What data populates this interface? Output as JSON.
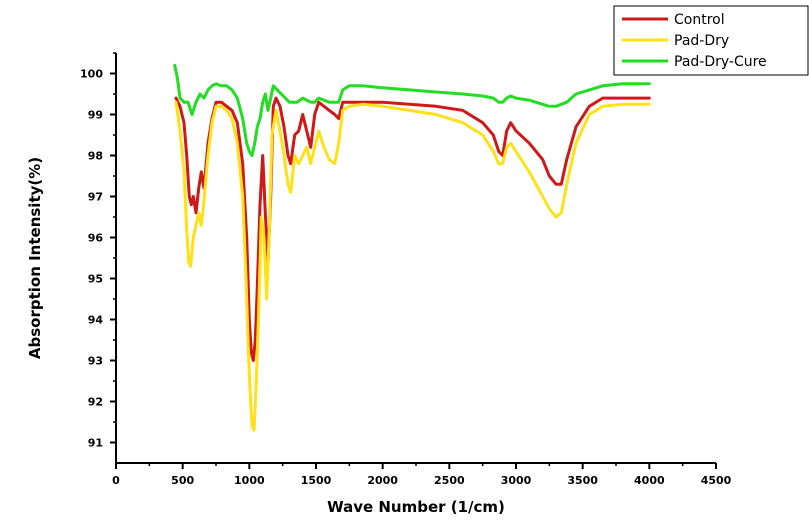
{
  "chart_data": {
    "type": "line",
    "title": "",
    "xlabel": "Wave Number (1/cm)",
    "ylabel": "Absorption Intensity(%)",
    "xlim": [
      0,
      4500
    ],
    "ylim": [
      90.5,
      100.5
    ],
    "xticks": [
      0,
      500,
      1000,
      1500,
      2000,
      2500,
      3000,
      3500,
      4000,
      4500
    ],
    "yticks": [
      91,
      92,
      93,
      94,
      95,
      96,
      97,
      98,
      99,
      100
    ],
    "legend_position": "top-right",
    "grid": false,
    "series": [
      {
        "name": "Control",
        "color": "#d01818",
        "points": [
          [
            450,
            99.4
          ],
          [
            480,
            99.2
          ],
          [
            510,
            98.8
          ],
          [
            530,
            98.0
          ],
          [
            550,
            97.0
          ],
          [
            565,
            96.8
          ],
          [
            580,
            97.0
          ],
          [
            600,
            96.6
          ],
          [
            620,
            97.2
          ],
          [
            640,
            97.6
          ],
          [
            660,
            97.2
          ],
          [
            690,
            98.3
          ],
          [
            720,
            98.9
          ],
          [
            750,
            99.3
          ],
          [
            790,
            99.3
          ],
          [
            830,
            99.2
          ],
          [
            870,
            99.1
          ],
          [
            910,
            98.8
          ],
          [
            950,
            97.8
          ],
          [
            980,
            96.0
          ],
          [
            1000,
            94.0
          ],
          [
            1015,
            93.2
          ],
          [
            1030,
            93.0
          ],
          [
            1045,
            93.5
          ],
          [
            1060,
            94.8
          ],
          [
            1080,
            96.8
          ],
          [
            1100,
            98.0
          ],
          [
            1120,
            96.6
          ],
          [
            1140,
            95.4
          ],
          [
            1160,
            97.0
          ],
          [
            1180,
            99.2
          ],
          [
            1200,
            99.4
          ],
          [
            1230,
            99.2
          ],
          [
            1260,
            98.7
          ],
          [
            1290,
            98.0
          ],
          [
            1310,
            97.8
          ],
          [
            1340,
            98.5
          ],
          [
            1370,
            98.6
          ],
          [
            1400,
            99.0
          ],
          [
            1430,
            98.6
          ],
          [
            1460,
            98.2
          ],
          [
            1490,
            99.0
          ],
          [
            1520,
            99.3
          ],
          [
            1560,
            99.2
          ],
          [
            1600,
            99.1
          ],
          [
            1640,
            99.0
          ],
          [
            1670,
            98.9
          ],
          [
            1700,
            99.3
          ],
          [
            1750,
            99.3
          ],
          [
            1850,
            99.3
          ],
          [
            2000,
            99.3
          ],
          [
            2200,
            99.25
          ],
          [
            2400,
            99.2
          ],
          [
            2600,
            99.1
          ],
          [
            2750,
            98.8
          ],
          [
            2830,
            98.5
          ],
          [
            2870,
            98.1
          ],
          [
            2900,
            98.0
          ],
          [
            2930,
            98.6
          ],
          [
            2960,
            98.8
          ],
          [
            3000,
            98.6
          ],
          [
            3100,
            98.3
          ],
          [
            3200,
            97.9
          ],
          [
            3250,
            97.5
          ],
          [
            3300,
            97.3
          ],
          [
            3340,
            97.3
          ],
          [
            3380,
            97.9
          ],
          [
            3450,
            98.7
          ],
          [
            3550,
            99.2
          ],
          [
            3650,
            99.4
          ],
          [
            3800,
            99.4
          ],
          [
            4000,
            99.4
          ]
        ]
      },
      {
        "name": "Pad-Dry",
        "color": "#ffe11a",
        "points": [
          [
            450,
            99.3
          ],
          [
            480,
            98.6
          ],
          [
            510,
            97.6
          ],
          [
            530,
            96.2
          ],
          [
            545,
            95.4
          ],
          [
            560,
            95.3
          ],
          [
            580,
            96.0
          ],
          [
            600,
            96.3
          ],
          [
            620,
            96.6
          ],
          [
            640,
            96.3
          ],
          [
            660,
            96.9
          ],
          [
            690,
            98.0
          ],
          [
            720,
            98.8
          ],
          [
            750,
            99.2
          ],
          [
            790,
            99.2
          ],
          [
            830,
            99.1
          ],
          [
            870,
            98.9
          ],
          [
            910,
            98.3
          ],
          [
            950,
            97.0
          ],
          [
            975,
            95.0
          ],
          [
            990,
            93.5
          ],
          [
            1005,
            92.3
          ],
          [
            1020,
            91.4
          ],
          [
            1035,
            91.3
          ],
          [
            1050,
            92.3
          ],
          [
            1070,
            94.2
          ],
          [
            1090,
            96.5
          ],
          [
            1110,
            96.0
          ],
          [
            1130,
            94.5
          ],
          [
            1150,
            96.2
          ],
          [
            1170,
            98.5
          ],
          [
            1200,
            99.1
          ],
          [
            1230,
            98.6
          ],
          [
            1260,
            98.0
          ],
          [
            1290,
            97.3
          ],
          [
            1310,
            97.1
          ],
          [
            1340,
            98.0
          ],
          [
            1370,
            97.8
          ],
          [
            1400,
            98.0
          ],
          [
            1430,
            98.2
          ],
          [
            1460,
            97.8
          ],
          [
            1490,
            98.2
          ],
          [
            1520,
            98.6
          ],
          [
            1560,
            98.2
          ],
          [
            1600,
            97.9
          ],
          [
            1640,
            97.8
          ],
          [
            1670,
            98.3
          ],
          [
            1700,
            99.1
          ],
          [
            1750,
            99.2
          ],
          [
            1850,
            99.25
          ],
          [
            2000,
            99.2
          ],
          [
            2200,
            99.1
          ],
          [
            2400,
            99.0
          ],
          [
            2600,
            98.8
          ],
          [
            2750,
            98.5
          ],
          [
            2830,
            98.1
          ],
          [
            2870,
            97.8
          ],
          [
            2900,
            97.8
          ],
          [
            2930,
            98.2
          ],
          [
            2960,
            98.3
          ],
          [
            3000,
            98.1
          ],
          [
            3100,
            97.6
          ],
          [
            3200,
            97.0
          ],
          [
            3250,
            96.7
          ],
          [
            3300,
            96.5
          ],
          [
            3340,
            96.6
          ],
          [
            3380,
            97.3
          ],
          [
            3450,
            98.3
          ],
          [
            3550,
            99.0
          ],
          [
            3650,
            99.2
          ],
          [
            3800,
            99.25
          ],
          [
            4000,
            99.25
          ]
        ]
      },
      {
        "name": "Pad-Dry-Cure",
        "color": "#22dd22",
        "points": [
          [
            440,
            100.2
          ],
          [
            460,
            99.9
          ],
          [
            480,
            99.4
          ],
          [
            510,
            99.3
          ],
          [
            540,
            99.3
          ],
          [
            570,
            99.0
          ],
          [
            600,
            99.3
          ],
          [
            630,
            99.5
          ],
          [
            660,
            99.4
          ],
          [
            690,
            99.6
          ],
          [
            720,
            99.7
          ],
          [
            750,
            99.75
          ],
          [
            790,
            99.7
          ],
          [
            830,
            99.7
          ],
          [
            870,
            99.6
          ],
          [
            910,
            99.4
          ],
          [
            950,
            98.9
          ],
          [
            980,
            98.3
          ],
          [
            1000,
            98.1
          ],
          [
            1020,
            98.0
          ],
          [
            1040,
            98.3
          ],
          [
            1060,
            98.7
          ],
          [
            1080,
            98.9
          ],
          [
            1100,
            99.3
          ],
          [
            1120,
            99.5
          ],
          [
            1140,
            99.1
          ],
          [
            1160,
            99.4
          ],
          [
            1180,
            99.7
          ],
          [
            1210,
            99.6
          ],
          [
            1240,
            99.5
          ],
          [
            1270,
            99.4
          ],
          [
            1300,
            99.3
          ],
          [
            1330,
            99.3
          ],
          [
            1360,
            99.3
          ],
          [
            1400,
            99.4
          ],
          [
            1430,
            99.35
          ],
          [
            1460,
            99.3
          ],
          [
            1490,
            99.3
          ],
          [
            1520,
            99.4
          ],
          [
            1560,
            99.35
          ],
          [
            1600,
            99.3
          ],
          [
            1640,
            99.3
          ],
          [
            1670,
            99.3
          ],
          [
            1700,
            99.6
          ],
          [
            1750,
            99.7
          ],
          [
            1850,
            99.7
          ],
          [
            2000,
            99.65
          ],
          [
            2200,
            99.6
          ],
          [
            2400,
            99.55
          ],
          [
            2600,
            99.5
          ],
          [
            2750,
            99.45
          ],
          [
            2830,
            99.4
          ],
          [
            2870,
            99.3
          ],
          [
            2900,
            99.3
          ],
          [
            2930,
            99.4
          ],
          [
            2960,
            99.45
          ],
          [
            3000,
            99.4
          ],
          [
            3100,
            99.35
          ],
          [
            3200,
            99.25
          ],
          [
            3250,
            99.2
          ],
          [
            3300,
            99.2
          ],
          [
            3340,
            99.25
          ],
          [
            3380,
            99.3
          ],
          [
            3450,
            99.5
          ],
          [
            3550,
            99.6
          ],
          [
            3650,
            99.7
          ],
          [
            3800,
            99.75
          ],
          [
            4000,
            99.75
          ]
        ]
      }
    ]
  }
}
